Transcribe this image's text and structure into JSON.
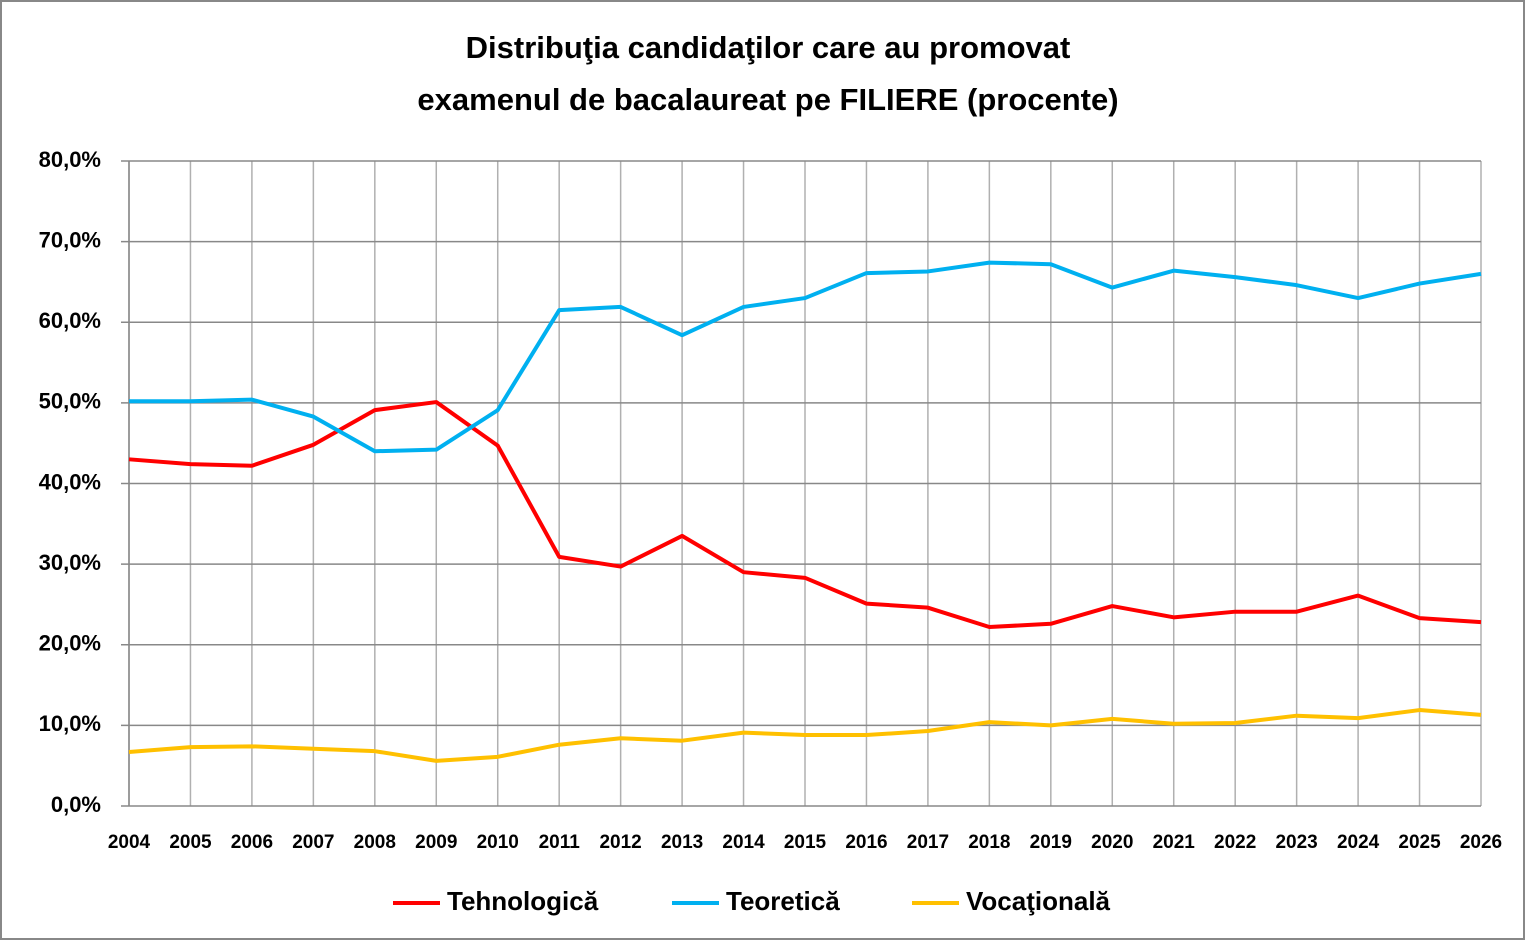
{
  "chart_data": {
    "type": "line",
    "title": [
      "Distribuţia candidaţilor care au promovat",
      "examenul de bacalaureat pe FILIERE (procente)"
    ],
    "categories": [
      "2004",
      "2005",
      "2006",
      "2007",
      "2008",
      "2009",
      "2010",
      "2011",
      "2012",
      "2013",
      "2014",
      "2015",
      "2016",
      "2017",
      "2018",
      "2019",
      "2020",
      "2021",
      "2022",
      "2023",
      "2024",
      "2025",
      "2026"
    ],
    "series": [
      {
        "name": "Tehnologică",
        "color": "#ff0000",
        "values": [
          43.0,
          42.4,
          42.2,
          44.8,
          49.1,
          50.1,
          44.7,
          30.9,
          29.7,
          33.5,
          29.0,
          28.3,
          25.1,
          24.6,
          22.2,
          22.6,
          24.8,
          23.4,
          24.1,
          24.1,
          26.1,
          23.3,
          22.8
        ]
      },
      {
        "name": "Teoretică",
        "color": "#00b0f0",
        "values": [
          50.2,
          50.2,
          50.4,
          48.3,
          44.0,
          44.2,
          49.1,
          61.5,
          61.9,
          58.4,
          61.9,
          63.0,
          66.1,
          66.3,
          67.4,
          67.2,
          64.3,
          66.4,
          65.6,
          64.6,
          63.0,
          64.8,
          66.0
        ]
      },
      {
        "name": "Vocaţională",
        "color": "#ffc000",
        "values": [
          6.7,
          7.3,
          7.4,
          7.1,
          6.8,
          5.6,
          6.1,
          7.6,
          8.4,
          8.1,
          9.1,
          8.8,
          8.8,
          9.3,
          10.4,
          10.0,
          10.8,
          10.2,
          10.3,
          11.2,
          10.9,
          11.9,
          11.3
        ]
      }
    ],
    "ylim": [
      0,
      80
    ],
    "yticks": [
      {
        "value": 0,
        "label": "0,0%"
      },
      {
        "value": 10,
        "label": "10,0%"
      },
      {
        "value": 20,
        "label": "20,0%"
      },
      {
        "value": 30,
        "label": "30,0%"
      },
      {
        "value": 40,
        "label": "40,0%"
      },
      {
        "value": 50,
        "label": "50,0%"
      },
      {
        "value": 60,
        "label": "60,0%"
      },
      {
        "value": 70,
        "label": "70,0%"
      },
      {
        "value": 80,
        "label": "80,0%"
      }
    ],
    "grid": true,
    "legend": "bottom"
  }
}
